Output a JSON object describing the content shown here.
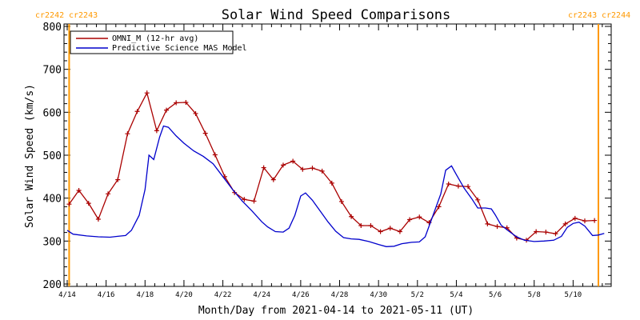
{
  "chart_data": {
    "type": "line",
    "title": "Solar Wind Speed Comparisons",
    "xlabel": "Month/Day from 2021-04-14 to 2021-05-11 (UT)",
    "ylabel": "Solar Wind Speed (km/s)",
    "ylim": [
      200,
      800
    ],
    "xlim": [
      0,
      27.3
    ],
    "x_unit": "days since 2021-04-14",
    "yticks": [
      200,
      300,
      400,
      500,
      600,
      700,
      800
    ],
    "xticks": [
      {
        "label": "4/14",
        "x": 0
      },
      {
        "label": "4/16",
        "x": 2
      },
      {
        "label": "4/18",
        "x": 4
      },
      {
        "label": "4/20",
        "x": 6
      },
      {
        "label": "4/22",
        "x": 8
      },
      {
        "label": "4/24",
        "x": 10
      },
      {
        "label": "4/26",
        "x": 12
      },
      {
        "label": "4/28",
        "x": 14
      },
      {
        "label": "4/30",
        "x": 16
      },
      {
        "label": "5/2",
        "x": 18
      },
      {
        "label": "5/4",
        "x": 20
      },
      {
        "label": "5/6",
        "x": 22
      },
      {
        "label": "5/8",
        "x": 24
      },
      {
        "label": "5/10",
        "x": 26
      }
    ],
    "legend_position": "top-left",
    "carrington_markers": [
      {
        "x": 0.1,
        "left_label": "cr2242",
        "right_label": "cr2243"
      },
      {
        "x": 27.3,
        "left_label": "cr2243",
        "right_label": "cr2244"
      }
    ],
    "series": [
      {
        "name": "OMNI_M (12-hr avg)",
        "color": "#aa0000",
        "markers": "plus",
        "points": [
          [
            0.1,
            386
          ],
          [
            0.6,
            418
          ],
          [
            1.1,
            388
          ],
          [
            1.6,
            351
          ],
          [
            2.1,
            410
          ],
          [
            2.6,
            443
          ],
          [
            3.1,
            550
          ],
          [
            3.6,
            602
          ],
          [
            4.1,
            645
          ],
          [
            4.6,
            557
          ],
          [
            5.1,
            605
          ],
          [
            5.6,
            622
          ],
          [
            6.1,
            623
          ],
          [
            6.6,
            597
          ],
          [
            7.1,
            551
          ],
          [
            7.6,
            501
          ],
          [
            8.1,
            450
          ],
          [
            8.6,
            413
          ],
          [
            9.1,
            397
          ],
          [
            9.6,
            393
          ],
          [
            10.1,
            471
          ],
          [
            10.6,
            443
          ],
          [
            11.1,
            477
          ],
          [
            11.6,
            486
          ],
          [
            12.1,
            467
          ],
          [
            12.6,
            470
          ],
          [
            13.1,
            463
          ],
          [
            13.6,
            435
          ],
          [
            14.1,
            392
          ],
          [
            14.6,
            357
          ],
          [
            15.1,
            336
          ],
          [
            15.6,
            336
          ],
          [
            16.1,
            322
          ],
          [
            16.6,
            330
          ],
          [
            17.1,
            322
          ],
          [
            17.6,
            350
          ],
          [
            18.1,
            356
          ],
          [
            18.6,
            343
          ],
          [
            19.1,
            380
          ],
          [
            19.6,
            433
          ],
          [
            20.1,
            428
          ],
          [
            20.6,
            427
          ],
          [
            21.1,
            396
          ],
          [
            21.6,
            340
          ],
          [
            22.1,
            334
          ],
          [
            22.6,
            331
          ],
          [
            23.1,
            307
          ],
          [
            23.6,
            302
          ],
          [
            24.1,
            322
          ],
          [
            24.6,
            321
          ],
          [
            25.1,
            317
          ],
          [
            25.6,
            340
          ],
          [
            26.1,
            353
          ],
          [
            26.6,
            347
          ],
          [
            27.1,
            348
          ]
        ]
      },
      {
        "name": "Predictive Science MAS Model",
        "color": "#0000cc",
        "markers": "none",
        "points": [
          [
            0.0,
            325
          ],
          [
            0.3,
            316
          ],
          [
            1.0,
            312
          ],
          [
            1.6,
            310
          ],
          [
            2.2,
            309
          ],
          [
            2.6,
            311
          ],
          [
            3.0,
            313
          ],
          [
            3.3,
            325
          ],
          [
            3.7,
            360
          ],
          [
            4.0,
            420
          ],
          [
            4.2,
            500
          ],
          [
            4.45,
            490
          ],
          [
            4.75,
            542
          ],
          [
            4.95,
            568
          ],
          [
            5.2,
            565
          ],
          [
            5.6,
            545
          ],
          [
            6.0,
            528
          ],
          [
            6.5,
            510
          ],
          [
            7.0,
            497
          ],
          [
            7.5,
            480
          ],
          [
            8.0,
            450
          ],
          [
            8.5,
            420
          ],
          [
            9.0,
            393
          ],
          [
            9.5,
            370
          ],
          [
            10.0,
            345
          ],
          [
            10.3,
            333
          ],
          [
            10.7,
            322
          ],
          [
            11.1,
            321
          ],
          [
            11.4,
            330
          ],
          [
            11.7,
            360
          ],
          [
            12.0,
            405
          ],
          [
            12.25,
            412
          ],
          [
            12.6,
            395
          ],
          [
            13.0,
            370
          ],
          [
            13.4,
            345
          ],
          [
            13.8,
            323
          ],
          [
            14.2,
            308
          ],
          [
            14.6,
            305
          ],
          [
            15.0,
            304
          ],
          [
            15.5,
            299
          ],
          [
            16.0,
            292
          ],
          [
            16.4,
            287
          ],
          [
            16.8,
            288
          ],
          [
            17.2,
            294
          ],
          [
            17.7,
            297
          ],
          [
            18.1,
            298
          ],
          [
            18.4,
            310
          ],
          [
            18.8,
            360
          ],
          [
            19.2,
            410
          ],
          [
            19.45,
            465
          ],
          [
            19.75,
            475
          ],
          [
            20.0,
            455
          ],
          [
            20.4,
            423
          ],
          [
            20.8,
            398
          ],
          [
            21.1,
            377
          ],
          [
            21.5,
            377
          ],
          [
            21.8,
            375
          ],
          [
            22.0,
            361
          ],
          [
            22.3,
            337
          ],
          [
            22.7,
            323
          ],
          [
            23.1,
            310
          ],
          [
            23.5,
            302
          ],
          [
            24.0,
            299
          ],
          [
            24.5,
            300
          ],
          [
            25.0,
            302
          ],
          [
            25.4,
            311
          ],
          [
            25.7,
            332
          ],
          [
            26.0,
            341
          ],
          [
            26.3,
            344
          ],
          [
            26.6,
            335
          ],
          [
            27.0,
            313
          ],
          [
            27.3,
            314
          ],
          [
            27.6,
            318
          ]
        ]
      }
    ]
  }
}
